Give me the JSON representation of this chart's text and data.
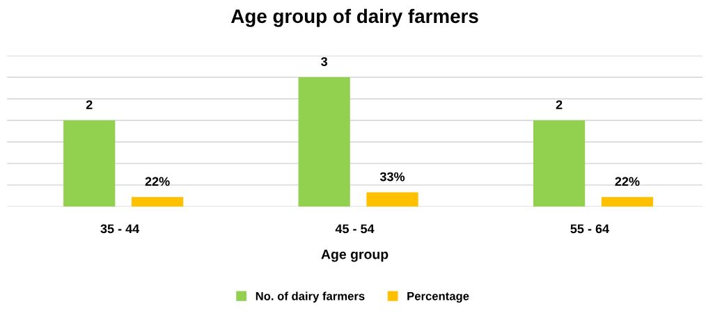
{
  "chart_data": {
    "type": "bar",
    "title": "Age group of dairy farmers",
    "xlabel": "Age group",
    "categories": [
      "35 - 44",
      "45 - 54",
      "55 - 64"
    ],
    "series": [
      {
        "name": "No. of dairy farmers",
        "color": "#92d050",
        "values": [
          2,
          3,
          2
        ],
        "value_labels": [
          "2",
          "3",
          "2"
        ]
      },
      {
        "name": "Percentage",
        "color": "#ffc000",
        "values": [
          0.22,
          0.33,
          0.22
        ],
        "value_labels": [
          "22%",
          "33%",
          "22%"
        ]
      }
    ],
    "ylim": [
      0,
      3.5
    ],
    "yticks": [
      {
        "value": 0,
        "label": null
      },
      {
        "value": 0.5,
        "label": null
      },
      {
        "value": 1,
        "label": null
      },
      {
        "value": 1.5,
        "label": null
      },
      {
        "value": 2,
        "label": null
      },
      {
        "value": 2.5,
        "label": null
      },
      {
        "value": 3,
        "label": null
      },
      {
        "value": 3.5,
        "label": null
      }
    ],
    "tick_labels": "x",
    "grid": "y",
    "legend": "bottom"
  }
}
